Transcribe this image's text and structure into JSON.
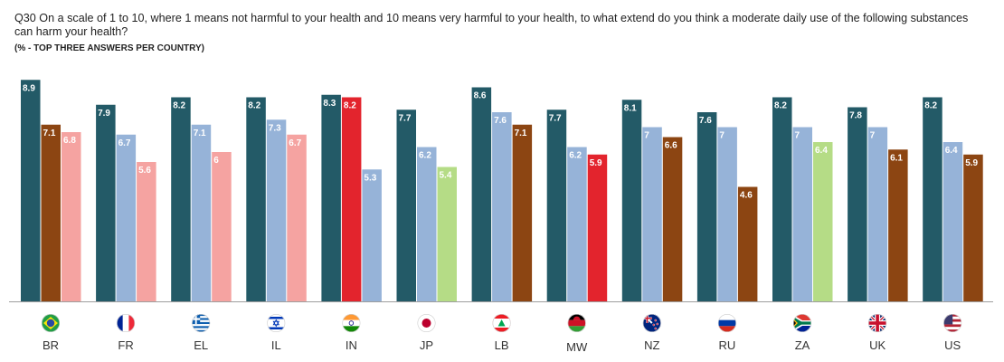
{
  "header": {
    "question": "Q30 On a scale of 1 to 10, where 1 means not harmful to your health and 10 means very harmful to your health, to what extend do you think a moderate daily use of the following substances can harm your health?",
    "subtitle": "(% - TOP THREE ANSWERS PER COUNTRY)"
  },
  "colors": {
    "dark_teal": "#235A67",
    "light_blue": "#96B3D8",
    "brown": "#8C4512",
    "pink": "#F5A3A1",
    "red": "#E3242D",
    "light_green": "#B5DC86",
    "baseline": "#9E9E9E"
  },
  "chart_data": {
    "type": "bar",
    "title": "",
    "xlabel": "",
    "ylabel": "",
    "ylim": [
      0,
      10
    ],
    "grid": false,
    "legend": "none",
    "groups": [
      {
        "code": "BR",
        "flag": "brazil-flag-icon",
        "bars": [
          {
            "label": "8.9",
            "value": 8.9,
            "color": "dark_teal"
          },
          {
            "label": "7.1",
            "value": 7.1,
            "color": "brown"
          },
          {
            "label": "6.8",
            "value": 6.8,
            "color": "pink"
          }
        ]
      },
      {
        "code": "FR",
        "flag": "france-flag-icon",
        "bars": [
          {
            "label": "7.9",
            "value": 7.9,
            "color": "dark_teal"
          },
          {
            "label": "6.7",
            "value": 6.7,
            "color": "light_blue"
          },
          {
            "label": "5.6",
            "value": 5.6,
            "color": "pink"
          }
        ]
      },
      {
        "code": "EL",
        "flag": "greece-flag-icon",
        "bars": [
          {
            "label": "8.2",
            "value": 8.2,
            "color": "dark_teal"
          },
          {
            "label": "7.1",
            "value": 7.1,
            "color": "light_blue"
          },
          {
            "label": "6",
            "value": 6.0,
            "color": "pink"
          }
        ]
      },
      {
        "code": "IL",
        "flag": "israel-flag-icon",
        "bars": [
          {
            "label": "8.2",
            "value": 8.2,
            "color": "dark_teal"
          },
          {
            "label": "7.3",
            "value": 7.3,
            "color": "light_blue"
          },
          {
            "label": "6.7",
            "value": 6.7,
            "color": "pink"
          }
        ]
      },
      {
        "code": "IN",
        "flag": "india-flag-icon",
        "bars": [
          {
            "label": "8.3",
            "value": 8.3,
            "color": "dark_teal"
          },
          {
            "label": "8.2",
            "value": 8.2,
            "color": "red"
          },
          {
            "label": "5.3",
            "value": 5.3,
            "color": "light_blue"
          }
        ]
      },
      {
        "code": "JP",
        "flag": "japan-flag-icon",
        "bars": [
          {
            "label": "7.7",
            "value": 7.7,
            "color": "dark_teal"
          },
          {
            "label": "6.2",
            "value": 6.2,
            "color": "light_blue"
          },
          {
            "label": "5.4",
            "value": 5.4,
            "color": "light_green"
          }
        ]
      },
      {
        "code": "LB",
        "flag": "lebanon-flag-icon",
        "bars": [
          {
            "label": "8.6",
            "value": 8.6,
            "color": "dark_teal"
          },
          {
            "label": "7.6",
            "value": 7.6,
            "color": "light_blue"
          },
          {
            "label": "7.1",
            "value": 7.1,
            "color": "brown"
          }
        ]
      },
      {
        "code": "MW",
        "flag": "malawi-flag-icon",
        "bars": [
          {
            "label": "7.7",
            "value": 7.7,
            "color": "dark_teal"
          },
          {
            "label": "6.2",
            "value": 6.2,
            "color": "light_blue"
          },
          {
            "label": "5.9",
            "value": 5.9,
            "color": "red"
          }
        ]
      },
      {
        "code": "NZ",
        "flag": "new-zealand-flag-icon",
        "bars": [
          {
            "label": "8.1",
            "value": 8.1,
            "color": "dark_teal"
          },
          {
            "label": "7",
            "value": 7.0,
            "color": "light_blue"
          },
          {
            "label": "6.6",
            "value": 6.6,
            "color": "brown"
          }
        ]
      },
      {
        "code": "RU",
        "flag": "russia-flag-icon",
        "bars": [
          {
            "label": "7.6",
            "value": 7.6,
            "color": "dark_teal"
          },
          {
            "label": "7",
            "value": 7.0,
            "color": "light_blue"
          },
          {
            "label": "4.6",
            "value": 4.6,
            "color": "brown"
          }
        ]
      },
      {
        "code": "ZA",
        "flag": "south-africa-flag-icon",
        "bars": [
          {
            "label": "8.2",
            "value": 8.2,
            "color": "dark_teal"
          },
          {
            "label": "7",
            "value": 7.0,
            "color": "light_blue"
          },
          {
            "label": "6.4",
            "value": 6.4,
            "color": "light_green"
          }
        ]
      },
      {
        "code": "UK",
        "flag": "uk-flag-icon",
        "bars": [
          {
            "label": "7.8",
            "value": 7.8,
            "color": "dark_teal"
          },
          {
            "label": "7",
            "value": 7.0,
            "color": "light_blue"
          },
          {
            "label": "6.1",
            "value": 6.1,
            "color": "brown"
          }
        ]
      },
      {
        "code": "US",
        "flag": "usa-flag-icon",
        "bars": [
          {
            "label": "8.2",
            "value": 8.2,
            "color": "dark_teal"
          },
          {
            "label": "6.4",
            "value": 6.4,
            "color": "light_blue"
          },
          {
            "label": "5.9",
            "value": 5.9,
            "color": "brown"
          }
        ]
      }
    ]
  }
}
